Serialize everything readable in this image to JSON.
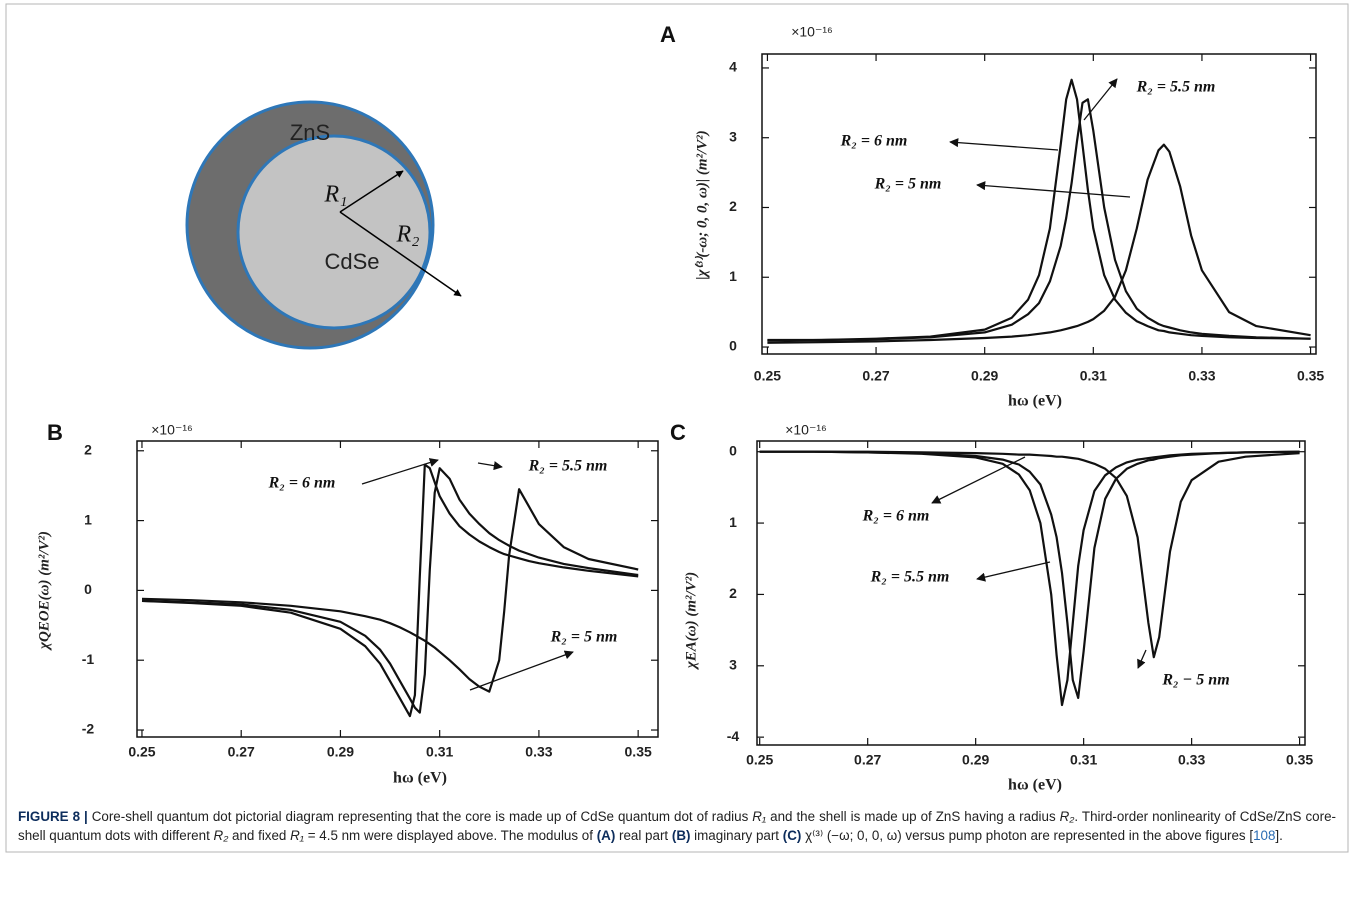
{
  "diagram": {
    "shell": "ZnS",
    "core": "CdSe",
    "r1": "R₁",
    "r2": "R₂"
  },
  "chart_data": [
    {
      "type": "line",
      "panel_label": "A",
      "y_exponent": "×10⁻¹⁶",
      "ylabel": "|χ⁽³⁾(-ω; 0, 0, ω)| (m²/V²)",
      "xlabel": "hω (eV)",
      "xlim": [
        0.249,
        0.351
      ],
      "ylim": [
        -0.1,
        4.2
      ],
      "xticks": [
        0.25,
        0.27,
        0.29,
        0.31,
        0.33,
        0.35
      ],
      "yticks": [
        0,
        1,
        2,
        3,
        4
      ],
      "grid": false,
      "x": [
        0.25,
        0.26,
        0.27,
        0.28,
        0.29,
        0.295,
        0.298,
        0.3,
        0.302,
        0.304,
        0.305,
        0.306,
        0.307,
        0.308,
        0.309,
        0.31,
        0.312,
        0.314,
        0.316,
        0.318,
        0.32,
        0.322,
        0.323,
        0.324,
        0.326,
        0.328,
        0.33,
        0.335,
        0.34,
        0.35
      ],
      "series": [
        {
          "name": "R₂ = 6 nm",
          "color": "#111111",
          "values": [
            0.1,
            0.1,
            0.12,
            0.15,
            0.25,
            0.42,
            0.68,
            1.03,
            1.7,
            2.9,
            3.55,
            3.83,
            3.55,
            2.9,
            2.25,
            1.7,
            1.03,
            0.68,
            0.49,
            0.37,
            0.3,
            0.24,
            0.23,
            0.21,
            0.19,
            0.17,
            0.16,
            0.14,
            0.13,
            0.12
          ]
        },
        {
          "name": "R₂ = 5.5 nm",
          "color": "#111111",
          "values": [
            0.09,
            0.1,
            0.11,
            0.14,
            0.21,
            0.32,
            0.47,
            0.63,
            0.94,
            1.45,
            1.85,
            2.35,
            2.95,
            3.5,
            3.55,
            3.1,
            2.0,
            1.25,
            0.8,
            0.55,
            0.42,
            0.33,
            0.3,
            0.28,
            0.24,
            0.21,
            0.19,
            0.16,
            0.14,
            0.12
          ]
        },
        {
          "name": "R₂ = 5 nm",
          "color": "#111111",
          "values": [
            0.06,
            0.07,
            0.08,
            0.1,
            0.13,
            0.15,
            0.17,
            0.19,
            0.21,
            0.24,
            0.26,
            0.28,
            0.3,
            0.33,
            0.36,
            0.4,
            0.52,
            0.72,
            1.1,
            1.7,
            2.4,
            2.82,
            2.9,
            2.8,
            2.3,
            1.6,
            1.1,
            0.5,
            0.3,
            0.17
          ]
        }
      ]
    },
    {
      "type": "line",
      "panel_label": "B",
      "y_exponent": "×10⁻¹⁶",
      "ylabel": "χQEOE(ω) (m²/V²)",
      "xlabel": "hω (eV)",
      "xlim": [
        0.249,
        0.354
      ],
      "ylim": [
        -2.1,
        2.14
      ],
      "xticks": [
        0.25,
        0.27,
        0.29,
        0.31,
        0.33,
        0.35
      ],
      "yticks": [
        2,
        1,
        0,
        -1,
        -2
      ],
      "grid": false,
      "x": [
        0.25,
        0.26,
        0.27,
        0.28,
        0.29,
        0.295,
        0.298,
        0.3,
        0.302,
        0.304,
        0.305,
        0.306,
        0.307,
        0.308,
        0.309,
        0.31,
        0.312,
        0.314,
        0.316,
        0.318,
        0.32,
        0.322,
        0.323,
        0.324,
        0.326,
        0.328,
        0.33,
        0.335,
        0.34,
        0.35
      ],
      "series": [
        {
          "name": "R₂ = 6 nm",
          "color": "#111111",
          "values": [
            -0.15,
            -0.18,
            -0.22,
            -0.32,
            -0.55,
            -0.8,
            -1.05,
            -1.3,
            -1.55,
            -1.8,
            -1.5,
            0.2,
            1.8,
            1.75,
            1.55,
            1.35,
            1.1,
            0.92,
            0.8,
            0.7,
            0.62,
            0.55,
            0.52,
            0.5,
            0.46,
            0.42,
            0.39,
            0.33,
            0.28,
            0.2
          ]
        },
        {
          "name": "R₂ = 5.5 nm",
          "color": "#111111",
          "values": [
            -0.15,
            -0.17,
            -0.2,
            -0.28,
            -0.45,
            -0.65,
            -0.85,
            -1.05,
            -1.3,
            -1.55,
            -1.68,
            -1.75,
            -1.2,
            0.3,
            1.4,
            1.75,
            1.6,
            1.3,
            1.1,
            0.95,
            0.82,
            0.72,
            0.68,
            0.64,
            0.57,
            0.52,
            0.47,
            0.38,
            0.32,
            0.22
          ]
        },
        {
          "name": "R₂ = 5 nm",
          "color": "#111111",
          "values": [
            -0.12,
            -0.14,
            -0.17,
            -0.22,
            -0.3,
            -0.37,
            -0.42,
            -0.47,
            -0.53,
            -0.6,
            -0.64,
            -0.68,
            -0.72,
            -0.77,
            -0.82,
            -0.88,
            -1.0,
            -1.13,
            -1.27,
            -1.38,
            -1.45,
            -1.0,
            -0.3,
            0.5,
            1.45,
            1.2,
            0.95,
            0.62,
            0.45,
            0.3
          ]
        }
      ]
    },
    {
      "type": "line",
      "panel_label": "C",
      "y_exponent": "×10⁻¹⁶",
      "ylabel": "χEA(ω) (m²/V²)",
      "xlabel": "hω (eV)",
      "xlim": [
        0.2495,
        0.351
      ],
      "ylim": [
        -4.11,
        0.15
      ],
      "xticks": [
        0.25,
        0.27,
        0.29,
        0.31,
        0.33,
        0.35
      ],
      "yticks": [
        0,
        {
          "value": -1,
          "label": "1"
        },
        {
          "value": -2,
          "label": "2"
        },
        {
          "value": -3,
          "label": "3"
        },
        -4
      ],
      "grid": false,
      "x": [
        0.25,
        0.26,
        0.27,
        0.28,
        0.29,
        0.295,
        0.298,
        0.3,
        0.302,
        0.304,
        0.305,
        0.306,
        0.307,
        0.308,
        0.309,
        0.31,
        0.312,
        0.314,
        0.316,
        0.318,
        0.32,
        0.322,
        0.323,
        0.324,
        0.326,
        0.328,
        0.33,
        0.335,
        0.34,
        0.35
      ],
      "series": [
        {
          "name": "R₂ = 6 nm",
          "color": "#111111",
          "values": [
            0,
            0,
            -0.01,
            -0.03,
            -0.08,
            -0.17,
            -0.32,
            -0.54,
            -1.0,
            -2.0,
            -2.85,
            -3.55,
            -3.2,
            -2.4,
            -1.6,
            -1.1,
            -0.55,
            -0.33,
            -0.22,
            -0.15,
            -0.11,
            -0.09,
            -0.08,
            -0.07,
            -0.05,
            -0.04,
            -0.03,
            -0.02,
            -0.01,
            0
          ]
        },
        {
          "name": "R₂ = 5.5 nm",
          "color": "#111111",
          "values": [
            0,
            0,
            -0.01,
            -0.02,
            -0.06,
            -0.11,
            -0.18,
            -0.28,
            -0.46,
            -0.88,
            -1.2,
            -1.7,
            -2.4,
            -3.2,
            -3.45,
            -2.8,
            -1.35,
            -0.66,
            -0.38,
            -0.24,
            -0.17,
            -0.12,
            -0.11,
            -0.09,
            -0.07,
            -0.05,
            -0.04,
            -0.02,
            -0.01,
            0
          ]
        },
        {
          "name": "R₂ − 5 nm",
          "color": "#111111",
          "values": [
            0,
            0,
            0,
            -0.01,
            -0.02,
            -0.03,
            -0.04,
            -0.04,
            -0.05,
            -0.06,
            -0.07,
            -0.07,
            -0.08,
            -0.09,
            -0.1,
            -0.12,
            -0.17,
            -0.24,
            -0.37,
            -0.62,
            -1.2,
            -2.4,
            -2.88,
            -2.6,
            -1.4,
            -0.7,
            -0.4,
            -0.14,
            -0.07,
            -0.02
          ]
        }
      ]
    }
  ],
  "caption": {
    "runs": [
      "FIGURE 8 |",
      " Core-shell quantum dot pictorial diagram representing that the core is made up of CdSe quantum dot of radius ",
      "R₁",
      " and the shell is made up of ZnS having a radius ",
      "R₂",
      ". Third-order nonlinearity of CdSe/ZnS core-shell quantum dots with different ",
      "R₂",
      " and fixed ",
      "R₁",
      " = 4.5 nm were displayed above. The modulus of ",
      "(A)",
      " real part ",
      "(B)",
      " imaginary part ",
      "(C)",
      " χ⁽³⁾ (−ω; 0, 0, ω) versus pump photon are represented in the above figures [",
      "108",
      "]."
    ]
  }
}
